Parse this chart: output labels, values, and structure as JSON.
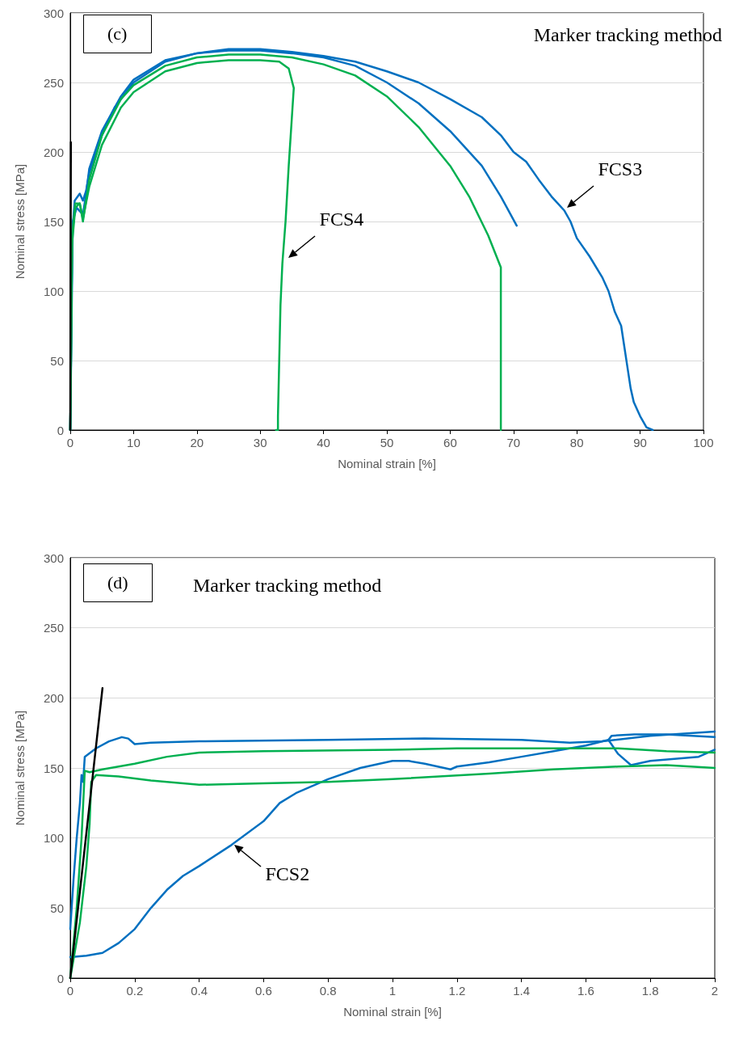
{
  "chart_data": [
    {
      "type": "line",
      "title": "(c)",
      "subtitle": "Marker tracking method",
      "xlabel": "Nominal strain [%]",
      "ylabel": "Nominal stress [MPa]",
      "xlim": [
        0,
        100
      ],
      "xticks": [
        0,
        10,
        20,
        30,
        40,
        50,
        60,
        70,
        80,
        90,
        100
      ],
      "ylim": [
        0,
        300
      ],
      "yticks": [
        0,
        50,
        100,
        150,
        200,
        250,
        300
      ],
      "grid": "y",
      "marker": "none",
      "line_style": "solid",
      "annotations": [
        {
          "text": "FCS4",
          "x": 34,
          "y": 122
        },
        {
          "text": "FCS3",
          "x": 78,
          "y": 158
        }
      ],
      "series": [
        {
          "color": "#0070c0",
          "x": [
            0,
            0.3,
            0.7,
            1.5,
            2,
            2.5,
            3,
            5,
            7,
            10,
            15,
            20,
            25,
            30,
            35,
            40,
            45,
            50,
            55,
            60,
            65,
            68,
            70,
            72,
            74,
            76,
            78,
            79,
            80,
            82,
            84,
            85,
            86,
            87,
            87.5,
            88,
            88.5,
            89,
            90,
            91,
            92
          ],
          "values": [
            0,
            140,
            165,
            170,
            165,
            172,
            185,
            212,
            232,
            250,
            265,
            271,
            274,
            274,
            272,
            269,
            265,
            258,
            250,
            238,
            225,
            212,
            200,
            193,
            180,
            168,
            158,
            150,
            138,
            125,
            110,
            100,
            85,
            75,
            60,
            45,
            30,
            20,
            10,
            2,
            0
          ]
        },
        {
          "color": "#0070c0",
          "x": [
            0,
            0.4,
            1,
            2,
            2.5,
            3,
            5,
            8,
            10,
            15,
            20,
            25,
            30,
            35,
            40,
            45,
            50,
            55,
            60,
            65,
            68,
            70.5
          ],
          "values": [
            0,
            150,
            160,
            155,
            170,
            188,
            215,
            240,
            252,
            266,
            271,
            273,
            273,
            271,
            268,
            262,
            250,
            235,
            215,
            190,
            168,
            147
          ]
        },
        {
          "color": "#00b050",
          "x": [
            0,
            0.3,
            0.8,
            1.5,
            2,
            3,
            5,
            8,
            10,
            15,
            20,
            25,
            30,
            33,
            34.5,
            35.3,
            35,
            34.5,
            34,
            33.5,
            33.2,
            33,
            32.8,
            32.8,
            32.5
          ],
          "values": [
            0,
            135,
            160,
            163,
            152,
            175,
            205,
            232,
            243,
            258,
            264,
            266,
            266,
            265,
            260,
            246,
            225,
            190,
            150,
            120,
            90,
            50,
            10,
            0,
            0
          ]
        },
        {
          "color": "#00b050",
          "x": [
            0,
            0.3,
            0.8,
            1.5,
            2,
            3,
            5,
            8,
            10,
            15,
            20,
            25,
            30,
            35,
            40,
            45,
            50,
            55,
            60,
            63,
            66,
            68,
            68
          ],
          "values": [
            0,
            140,
            163,
            163,
            150,
            180,
            212,
            238,
            248,
            262,
            268,
            270,
            270,
            268,
            263,
            255,
            240,
            218,
            190,
            168,
            140,
            117,
            0
          ]
        },
        {
          "color": "#000000",
          "x": [
            0,
            0.1
          ],
          "values": [
            0,
            207
          ]
        }
      ]
    },
    {
      "type": "line",
      "title": "(d)",
      "subtitle": "Marker tracking method",
      "xlabel": "Nominal strain [%]",
      "ylabel": "Nominal stress [MPa]",
      "xlim": [
        0,
        2
      ],
      "xticks": [
        0,
        0.2,
        0.4,
        0.6,
        0.8,
        1,
        1.2,
        1.4,
        1.6,
        1.8,
        2
      ],
      "ylim": [
        0,
        300
      ],
      "yticks": [
        0,
        50,
        100,
        150,
        200,
        250,
        300
      ],
      "grid": "y",
      "marker": "none",
      "line_style": "solid",
      "annotations": [
        {
          "text": "FCS2",
          "x": 0.5,
          "y": 97
        }
      ],
      "series": [
        {
          "color": "#0070c0",
          "x": [
            0,
            0.01,
            0.02,
            0.03,
            0.035,
            0.04,
            0.045,
            0.08,
            0.12,
            0.16,
            0.18,
            0.2,
            0.25,
            0.4,
            0.8,
            1.1,
            1.4,
            1.55,
            1.65,
            1.8,
            2
          ],
          "values": [
            35,
            70,
            100,
            125,
            145,
            140,
            158,
            164,
            169,
            172,
            171,
            167,
            168,
            169,
            170,
            171,
            170,
            168,
            169,
            173,
            176
          ]
        },
        {
          "color": "#0070c0",
          "x": [
            0,
            0.05,
            0.1,
            0.15,
            0.2,
            0.25,
            0.3,
            0.35,
            0.4,
            0.5,
            0.6,
            0.65,
            0.7,
            0.8,
            0.9,
            1,
            1.05,
            1.1,
            1.18,
            1.2,
            1.3,
            1.4,
            1.5,
            1.6,
            1.67,
            1.7,
            1.74,
            1.8,
            1.95,
            2
          ],
          "values": [
            15,
            16,
            18,
            25,
            35,
            50,
            63,
            73,
            80,
            95,
            112,
            125,
            132,
            142,
            150,
            155,
            155,
            153,
            149,
            151,
            154,
            158,
            162,
            166,
            170,
            160,
            152,
            155,
            158,
            163
          ]
        },
        {
          "color": "#0070c0",
          "x": [
            1.67,
            1.68,
            1.75,
            1.85,
            2
          ],
          "values": [
            170,
            173,
            174,
            174,
            172
          ]
        },
        {
          "color": "#00b050",
          "x": [
            0,
            0.02,
            0.035,
            0.045,
            0.06,
            0.1,
            0.2,
            0.3,
            0.4,
            0.6,
            1,
            1.2,
            1.5,
            1.7,
            1.85,
            2
          ],
          "values": [
            0,
            50,
            100,
            148,
            147,
            149,
            153,
            158,
            161,
            162,
            163,
            164,
            164,
            164,
            162,
            161
          ]
        },
        {
          "color": "#00b050",
          "x": [
            0,
            0.03,
            0.05,
            0.06,
            0.065,
            0.08,
            0.15,
            0.25,
            0.4,
            0.6,
            0.8,
            1,
            1.3,
            1.5,
            1.7,
            1.85,
            2
          ],
          "values": [
            0,
            40,
            80,
            110,
            140,
            145,
            144,
            141,
            138,
            139,
            140,
            142,
            146,
            149,
            151,
            152,
            150
          ]
        },
        {
          "color": "#000000",
          "x": [
            0,
            0.1
          ],
          "values": [
            0,
            207
          ]
        }
      ]
    }
  ]
}
